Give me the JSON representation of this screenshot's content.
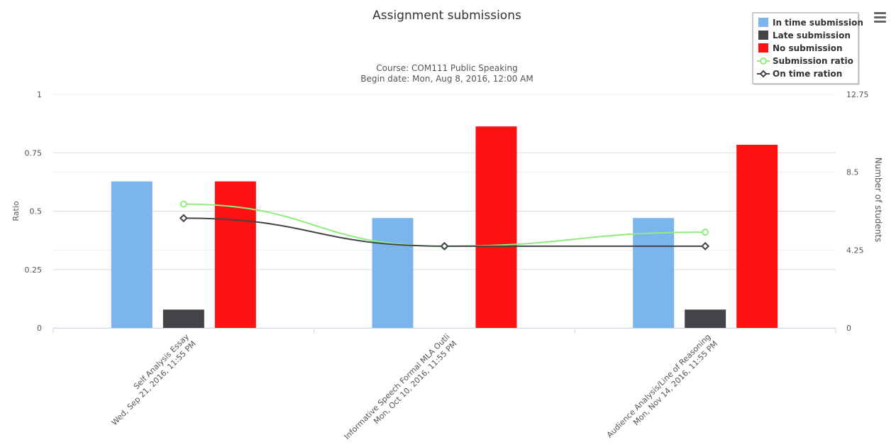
{
  "chart_data": {
    "type": "bar",
    "title": "Assignment submissions",
    "subtitle_lines": [
      "Course: COM111 Public Speaking",
      "Begin date: Mon, Aug 8, 2016, 12:00 AM"
    ],
    "categories": [
      [
        "Self Analysis Essay",
        "Wed, Sep 21, 2016, 11:55 PM"
      ],
      [
        "Informative Speech Formal MLA Outli",
        "Mon, Oct 10, 2016, 11:55 PM"
      ],
      [
        "Audience Analysis/Line of Reasoning",
        "Mon, Nov 14, 2016, 11:55 PM"
      ]
    ],
    "y_left": {
      "label": "Ratio",
      "min": 0,
      "max": 1,
      "ticks": [
        "0",
        "0.25",
        "0.5",
        "0.75",
        "1"
      ]
    },
    "y_right": {
      "label": "Number of students",
      "min": 0,
      "max": 12.75,
      "ticks": [
        "0",
        "4.25",
        "8.5",
        "12.75"
      ]
    },
    "series": [
      {
        "name": "In time submission",
        "type": "bar",
        "axis": "right",
        "color": "#7cb5ec",
        "values": [
          8,
          6,
          6
        ]
      },
      {
        "name": "Late submission",
        "type": "bar",
        "axis": "right",
        "color": "#434348",
        "values": [
          1,
          0,
          1
        ]
      },
      {
        "name": "No submission",
        "type": "bar",
        "axis": "right",
        "color": "#ff1111",
        "values": [
          8,
          11,
          10
        ]
      },
      {
        "name": "Submission ratio",
        "type": "line",
        "axis": "left",
        "color": "#90ed7d",
        "marker": "circle",
        "values": [
          0.53,
          0.35,
          0.41
        ]
      },
      {
        "name": "On time ration",
        "type": "line",
        "axis": "left",
        "color": "#434348",
        "marker": "diamond",
        "values": [
          0.47,
          0.35,
          0.35
        ]
      }
    ],
    "legend_position": "top-right",
    "grid": true
  }
}
